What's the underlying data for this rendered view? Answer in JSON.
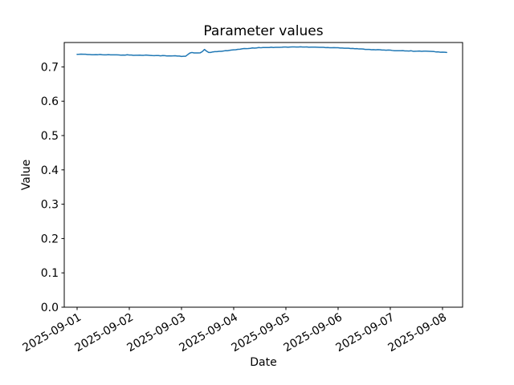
{
  "chart_data": {
    "type": "line",
    "title": "Parameter values",
    "xlabel": "Date",
    "ylabel": "Value",
    "grid": false,
    "legend": false,
    "background_color": "#ffffff",
    "spine_color": "#000000",
    "tick_color": "#000000",
    "x_tick_labels": [
      "2025-09-01",
      "2025-09-02",
      "2025-09-03",
      "2025-09-04",
      "2025-09-05",
      "2025-09-06",
      "2025-09-07",
      "2025-09-08"
    ],
    "x_tick_days": [
      0,
      1,
      2,
      3,
      4,
      5,
      6,
      7
    ],
    "x_tick_rotation_deg": 30,
    "y_tick_labels": [
      "0.0",
      "0.1",
      "0.2",
      "0.3",
      "0.4",
      "0.5",
      "0.6",
      "0.7"
    ],
    "y_tick_values": [
      0.0,
      0.1,
      0.2,
      0.3,
      0.4,
      0.5,
      0.6,
      0.7
    ],
    "xlim_days": [
      -0.246,
      7.385
    ],
    "ylim": [
      0.0,
      0.771
    ],
    "noise_amplitude": 0.0006,
    "sample_step_days": 0.04,
    "series": [
      {
        "name": "parameter",
        "color": "#1f77b4",
        "line_width": 1.5,
        "points": [
          [
            0.0,
            0.737
          ],
          [
            0.1,
            0.7368
          ],
          [
            0.2,
            0.736
          ],
          [
            0.3,
            0.7355
          ],
          [
            0.42,
            0.7362
          ],
          [
            0.55,
            0.7348
          ],
          [
            0.65,
            0.7352
          ],
          [
            0.8,
            0.7345
          ],
          [
            0.95,
            0.7348
          ],
          [
            1.05,
            0.7342
          ],
          [
            1.2,
            0.7338
          ],
          [
            1.35,
            0.7342
          ],
          [
            1.5,
            0.733
          ],
          [
            1.62,
            0.7328
          ],
          [
            1.75,
            0.7318
          ],
          [
            1.88,
            0.7322
          ],
          [
            2.0,
            0.7308
          ],
          [
            2.08,
            0.7312
          ],
          [
            2.17,
            0.742
          ],
          [
            2.28,
            0.7402
          ],
          [
            2.38,
            0.7412
          ],
          [
            2.45,
            0.752
          ],
          [
            2.5,
            0.7415
          ],
          [
            2.6,
            0.7432
          ],
          [
            2.75,
            0.7458
          ],
          [
            2.9,
            0.7478
          ],
          [
            3.05,
            0.7502
          ],
          [
            3.2,
            0.7528
          ],
          [
            3.4,
            0.7552
          ],
          [
            3.6,
            0.7565
          ],
          [
            3.8,
            0.7572
          ],
          [
            4.0,
            0.7576
          ],
          [
            4.2,
            0.758
          ],
          [
            4.4,
            0.7578
          ],
          [
            4.6,
            0.7572
          ],
          [
            4.8,
            0.7565
          ],
          [
            5.0,
            0.7558
          ],
          [
            5.15,
            0.7545
          ],
          [
            5.3,
            0.7532
          ],
          [
            5.45,
            0.7518
          ],
          [
            5.6,
            0.7508
          ],
          [
            5.75,
            0.75
          ],
          [
            5.9,
            0.7488
          ],
          [
            6.05,
            0.7478
          ],
          [
            6.2,
            0.7472
          ],
          [
            6.35,
            0.7468
          ],
          [
            6.5,
            0.7455
          ],
          [
            6.65,
            0.746
          ],
          [
            6.8,
            0.7445
          ],
          [
            6.92,
            0.7435
          ],
          [
            7.02,
            0.7426
          ],
          [
            7.08,
            0.742
          ]
        ]
      }
    ]
  }
}
